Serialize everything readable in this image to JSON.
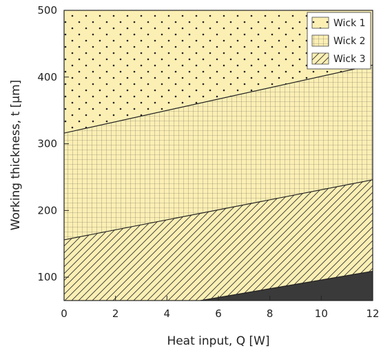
{
  "chart_data": {
    "type": "area",
    "title": "",
    "xlabel": "Heat input, Q [W]",
    "ylabel": "Working thickness, t [μm]",
    "xlim": [
      0,
      12
    ],
    "ylim": [
      65,
      500
    ],
    "x_ticks": [
      0,
      2,
      4,
      6,
      8,
      10,
      12
    ],
    "y_ticks": [
      100,
      200,
      300,
      400,
      500
    ],
    "legend_position": "top-right",
    "boundaries": [
      {
        "name": "Wick 1 / Wick 2",
        "x": [
          0,
          12
        ],
        "y": [
          316,
          418
        ]
      },
      {
        "name": "Wick 2 / Wick 3",
        "x": [
          0,
          12
        ],
        "y": [
          156,
          246
        ]
      },
      {
        "name": "Wick 3 / dark region",
        "x": [
          5.3,
          12
        ],
        "y": [
          65,
          109
        ]
      }
    ],
    "series": [
      {
        "name": "Wick 1",
        "pattern": "dots",
        "color": "#fcefb4"
      },
      {
        "name": "Wick 2",
        "pattern": "grid",
        "color": "#fcefb4"
      },
      {
        "name": "Wick 3",
        "pattern": "diagonal",
        "color": "#fcefb4"
      },
      {
        "name": "",
        "pattern": "solid",
        "color": "#3a3a3a"
      }
    ]
  }
}
